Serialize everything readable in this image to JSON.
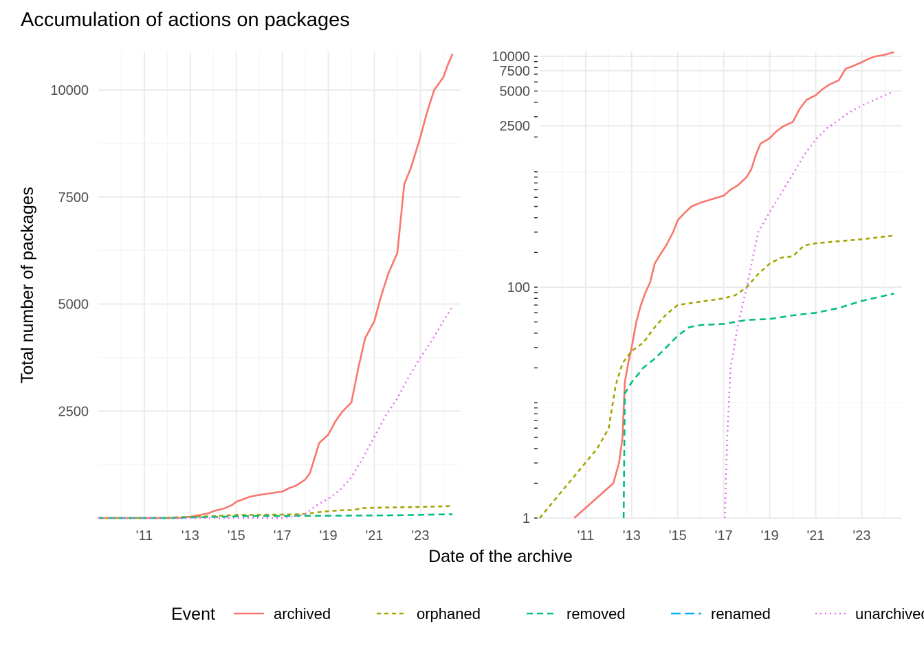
{
  "chart_data": {
    "type": "line",
    "title": "Accumulation of actions on packages",
    "xlabel": "Date of the archive",
    "ylabel": "Total number of packages",
    "x_tick_labels": [
      "'11",
      "'13",
      "'15",
      "'17",
      "'19",
      "'21",
      "'23"
    ],
    "x_tick_values": [
      2011,
      2013,
      2015,
      2017,
      2019,
      2021,
      2023
    ],
    "grid": true,
    "legend": {
      "title": "Event",
      "position": "bottom",
      "entries": [
        {
          "label": "archived",
          "color": "#F8766D",
          "dash": "solid"
        },
        {
          "label": "orphaned",
          "color": "#A3A500",
          "dash": "dotted-dash"
        },
        {
          "label": "removed",
          "color": "#00BF7D",
          "dash": "dashed"
        },
        {
          "label": "renamed",
          "color": "#00B0F6",
          "dash": "long-dash"
        },
        {
          "label": "unarchived",
          "color": "#E76BF3",
          "dash": "dotted"
        }
      ]
    },
    "panels": [
      {
        "scale": "linear",
        "xlim": [
          2009.0,
          2024.75
        ],
        "ylim": [
          0,
          10900
        ],
        "y_tick_labels": [
          "2500",
          "5000",
          "7500",
          "10000"
        ],
        "y_tick_values": [
          2500,
          5000,
          7500,
          10000
        ]
      },
      {
        "scale": "log",
        "xlim": [
          2009.0,
          2024.75
        ],
        "ylim": [
          1,
          11000
        ],
        "y_tick_labels": [
          "1",
          "100",
          "2500",
          "5000",
          "7500",
          "10000"
        ],
        "y_tick_values": [
          1,
          100,
          2500,
          5000,
          7500,
          10000
        ]
      }
    ],
    "series": [
      {
        "name": "archived",
        "x": [
          2010.5,
          2012.2,
          2012.45,
          2012.6,
          2012.7,
          2012.85,
          2013.0,
          2013.2,
          2013.4,
          2013.6,
          2013.8,
          2014.0,
          2014.3,
          2014.5,
          2014.8,
          2015.0,
          2015.3,
          2015.6,
          2016.0,
          2016.5,
          2017.0,
          2017.3,
          2017.6,
          2018.0,
          2018.2,
          2018.4,
          2018.6,
          2019.0,
          2019.3,
          2019.6,
          2020.0,
          2020.3,
          2020.6,
          2021.0,
          2021.3,
          2021.6,
          2022.0,
          2022.3,
          2022.6,
          2023.0,
          2023.3,
          2023.6,
          2024.0,
          2024.2,
          2024.4
        ],
        "y": [
          1,
          2,
          3,
          5,
          15,
          22,
          30,
          50,
          70,
          90,
          110,
          160,
          200,
          230,
          300,
          380,
          440,
          500,
          540,
          580,
          620,
          700,
          760,
          900,
          1050,
          1400,
          1750,
          1950,
          2250,
          2480,
          2700,
          3500,
          4200,
          4600,
          5200,
          5700,
          6200,
          7800,
          8200,
          8900,
          9500,
          10000,
          10300,
          10600,
          10850
        ]
      },
      {
        "name": "orphaned",
        "x": [
          2009.0,
          2011.5,
          2012.0,
          2012.3,
          2012.6,
          2013.0,
          2013.5,
          2014.0,
          2014.5,
          2015.0,
          2016.0,
          2017.0,
          2017.5,
          2018.0,
          2018.5,
          2019.0,
          2019.5,
          2020.0,
          2020.5,
          2021.0,
          2022.0,
          2023.0,
          2024.4
        ],
        "y": [
          1,
          4,
          6,
          14,
          22,
          28,
          33,
          45,
          58,
          70,
          75,
          80,
          85,
          100,
          130,
          160,
          180,
          185,
          230,
          240,
          250,
          260,
          280
        ]
      },
      {
        "name": "removed",
        "x": [
          2012.65,
          2012.7,
          2013.0,
          2013.5,
          2014.0,
          2014.5,
          2015.0,
          2015.5,
          2016.0,
          2017.0,
          2017.5,
          2018.0,
          2019.0,
          2020.0,
          2021.0,
          2022.0,
          2023.0,
          2024.4
        ],
        "y": [
          1,
          12,
          15,
          20,
          24,
          30,
          38,
          45,
          47,
          48,
          50,
          52,
          53,
          57,
          60,
          66,
          76,
          88
        ]
      },
      {
        "name": "unarchived",
        "x": [
          2017.05,
          2017.15,
          2017.3,
          2017.6,
          2018.0,
          2018.5,
          2019.0,
          2019.5,
          2020.0,
          2020.5,
          2021.0,
          2021.5,
          2022.0,
          2022.5,
          2023.0,
          2023.5,
          2024.0,
          2024.4
        ],
        "y": [
          1,
          5,
          20,
          45,
          100,
          300,
          450,
          650,
          950,
          1400,
          1900,
          2400,
          2800,
          3300,
          3750,
          4150,
          4600,
          4950
        ]
      }
    ]
  }
}
